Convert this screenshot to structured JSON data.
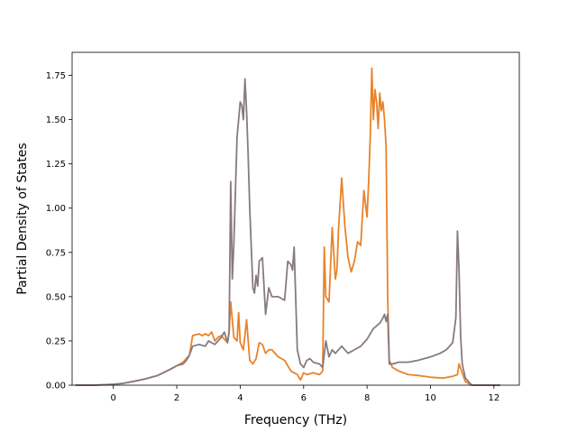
{
  "chart_data": {
    "type": "line",
    "title": "",
    "xlabel": "Frequency (THz)",
    "ylabel": "Partial Density of States",
    "xlim": [
      -1.3,
      12.8
    ],
    "ylim": [
      0,
      1.88
    ],
    "xticks": [
      0,
      2,
      4,
      6,
      8,
      10,
      12
    ],
    "xtick_labels": [
      "0",
      "2",
      "4",
      "6",
      "8",
      "10",
      "12"
    ],
    "yticks": [
      0,
      0.25,
      0.5,
      0.75,
      1.0,
      1.25,
      1.5,
      1.75
    ],
    "ytick_labels": [
      "0.00",
      "0.25",
      "0.50",
      "0.75",
      "1.00",
      "1.25",
      "1.50",
      "1.75"
    ],
    "grid": false,
    "legend": false,
    "series": [
      {
        "color": "#e8832a",
        "x": [
          -1.2,
          -0.6,
          0,
          0.3,
          0.6,
          1.0,
          1.4,
          1.8,
          2.0,
          2.2,
          2.4,
          2.5,
          2.7,
          2.8,
          2.9,
          3.0,
          3.1,
          3.2,
          3.3,
          3.4,
          3.5,
          3.6,
          3.65,
          3.7,
          3.8,
          3.9,
          3.95,
          4.0,
          4.1,
          4.2,
          4.3,
          4.4,
          4.5,
          4.6,
          4.7,
          4.8,
          4.9,
          5.0,
          5.2,
          5.4,
          5.6,
          5.8,
          5.9,
          6.0,
          6.1,
          6.3,
          6.5,
          6.6,
          6.65,
          6.7,
          6.8,
          6.9,
          7.0,
          7.05,
          7.1,
          7.2,
          7.3,
          7.4,
          7.5,
          7.6,
          7.7,
          7.8,
          7.9,
          8.0,
          8.05,
          8.1,
          8.15,
          8.2,
          8.25,
          8.3,
          8.35,
          8.4,
          8.45,
          8.5,
          8.55,
          8.6,
          8.65,
          8.7,
          8.8,
          9.0,
          9.3,
          9.6,
          10.0,
          10.4,
          10.7,
          10.85,
          10.9,
          11.0,
          11.1,
          11.3,
          12.2
        ],
        "y": [
          0,
          0,
          0.005,
          0.01,
          0.02,
          0.035,
          0.055,
          0.09,
          0.11,
          0.13,
          0.17,
          0.28,
          0.29,
          0.28,
          0.29,
          0.28,
          0.3,
          0.25,
          0.27,
          0.28,
          0.26,
          0.24,
          0.3,
          0.47,
          0.27,
          0.25,
          0.41,
          0.24,
          0.2,
          0.37,
          0.14,
          0.12,
          0.15,
          0.24,
          0.23,
          0.18,
          0.2,
          0.2,
          0.16,
          0.14,
          0.08,
          0.06,
          0.03,
          0.07,
          0.06,
          0.07,
          0.06,
          0.08,
          0.78,
          0.5,
          0.47,
          0.89,
          0.6,
          0.65,
          0.88,
          1.17,
          0.9,
          0.72,
          0.64,
          0.7,
          0.81,
          0.79,
          1.1,
          0.95,
          1.15,
          1.4,
          1.79,
          1.5,
          1.67,
          1.6,
          1.45,
          1.65,
          1.55,
          1.6,
          1.5,
          1.35,
          0.5,
          0.14,
          0.1,
          0.08,
          0.06,
          0.055,
          0.045,
          0.04,
          0.05,
          0.06,
          0.12,
          0.07,
          0.02,
          0,
          0
        ]
      },
      {
        "color": "#877a80",
        "x": [
          -1.2,
          -0.6,
          0,
          0.3,
          0.6,
          1.0,
          1.4,
          1.8,
          2.0,
          2.2,
          2.3,
          2.4,
          2.5,
          2.7,
          2.9,
          3.0,
          3.2,
          3.4,
          3.5,
          3.6,
          3.65,
          3.7,
          3.75,
          3.8,
          3.9,
          4.0,
          4.05,
          4.1,
          4.15,
          4.2,
          4.25,
          4.3,
          4.4,
          4.45,
          4.5,
          4.55,
          4.6,
          4.7,
          4.8,
          4.9,
          5.0,
          5.2,
          5.4,
          5.5,
          5.6,
          5.65,
          5.7,
          5.8,
          5.9,
          6.0,
          6.1,
          6.2,
          6.3,
          6.5,
          6.6,
          6.7,
          6.8,
          6.9,
          7.0,
          7.2,
          7.4,
          7.6,
          7.8,
          8.0,
          8.2,
          8.4,
          8.5,
          8.55,
          8.6,
          8.65,
          8.7,
          8.8,
          9.0,
          9.3,
          9.6,
          10.0,
          10.3,
          10.5,
          10.7,
          10.8,
          10.85,
          10.9,
          10.95,
          11.0,
          11.1,
          11.3,
          12.2
        ],
        "y": [
          0,
          0,
          0.005,
          0.01,
          0.02,
          0.035,
          0.055,
          0.09,
          0.11,
          0.12,
          0.14,
          0.17,
          0.22,
          0.23,
          0.22,
          0.25,
          0.23,
          0.27,
          0.3,
          0.24,
          0.3,
          1.15,
          0.6,
          0.8,
          1.4,
          1.6,
          1.58,
          1.5,
          1.73,
          1.55,
          1.3,
          1.0,
          0.55,
          0.52,
          0.62,
          0.56,
          0.7,
          0.72,
          0.4,
          0.55,
          0.5,
          0.5,
          0.48,
          0.7,
          0.68,
          0.65,
          0.78,
          0.2,
          0.12,
          0.1,
          0.14,
          0.15,
          0.13,
          0.12,
          0.1,
          0.25,
          0.16,
          0.2,
          0.18,
          0.22,
          0.18,
          0.2,
          0.22,
          0.26,
          0.32,
          0.35,
          0.38,
          0.4,
          0.36,
          0.4,
          0.12,
          0.12,
          0.13,
          0.13,
          0.14,
          0.16,
          0.18,
          0.2,
          0.24,
          0.38,
          0.87,
          0.65,
          0.28,
          0.12,
          0.04,
          0,
          0
        ]
      }
    ]
  }
}
